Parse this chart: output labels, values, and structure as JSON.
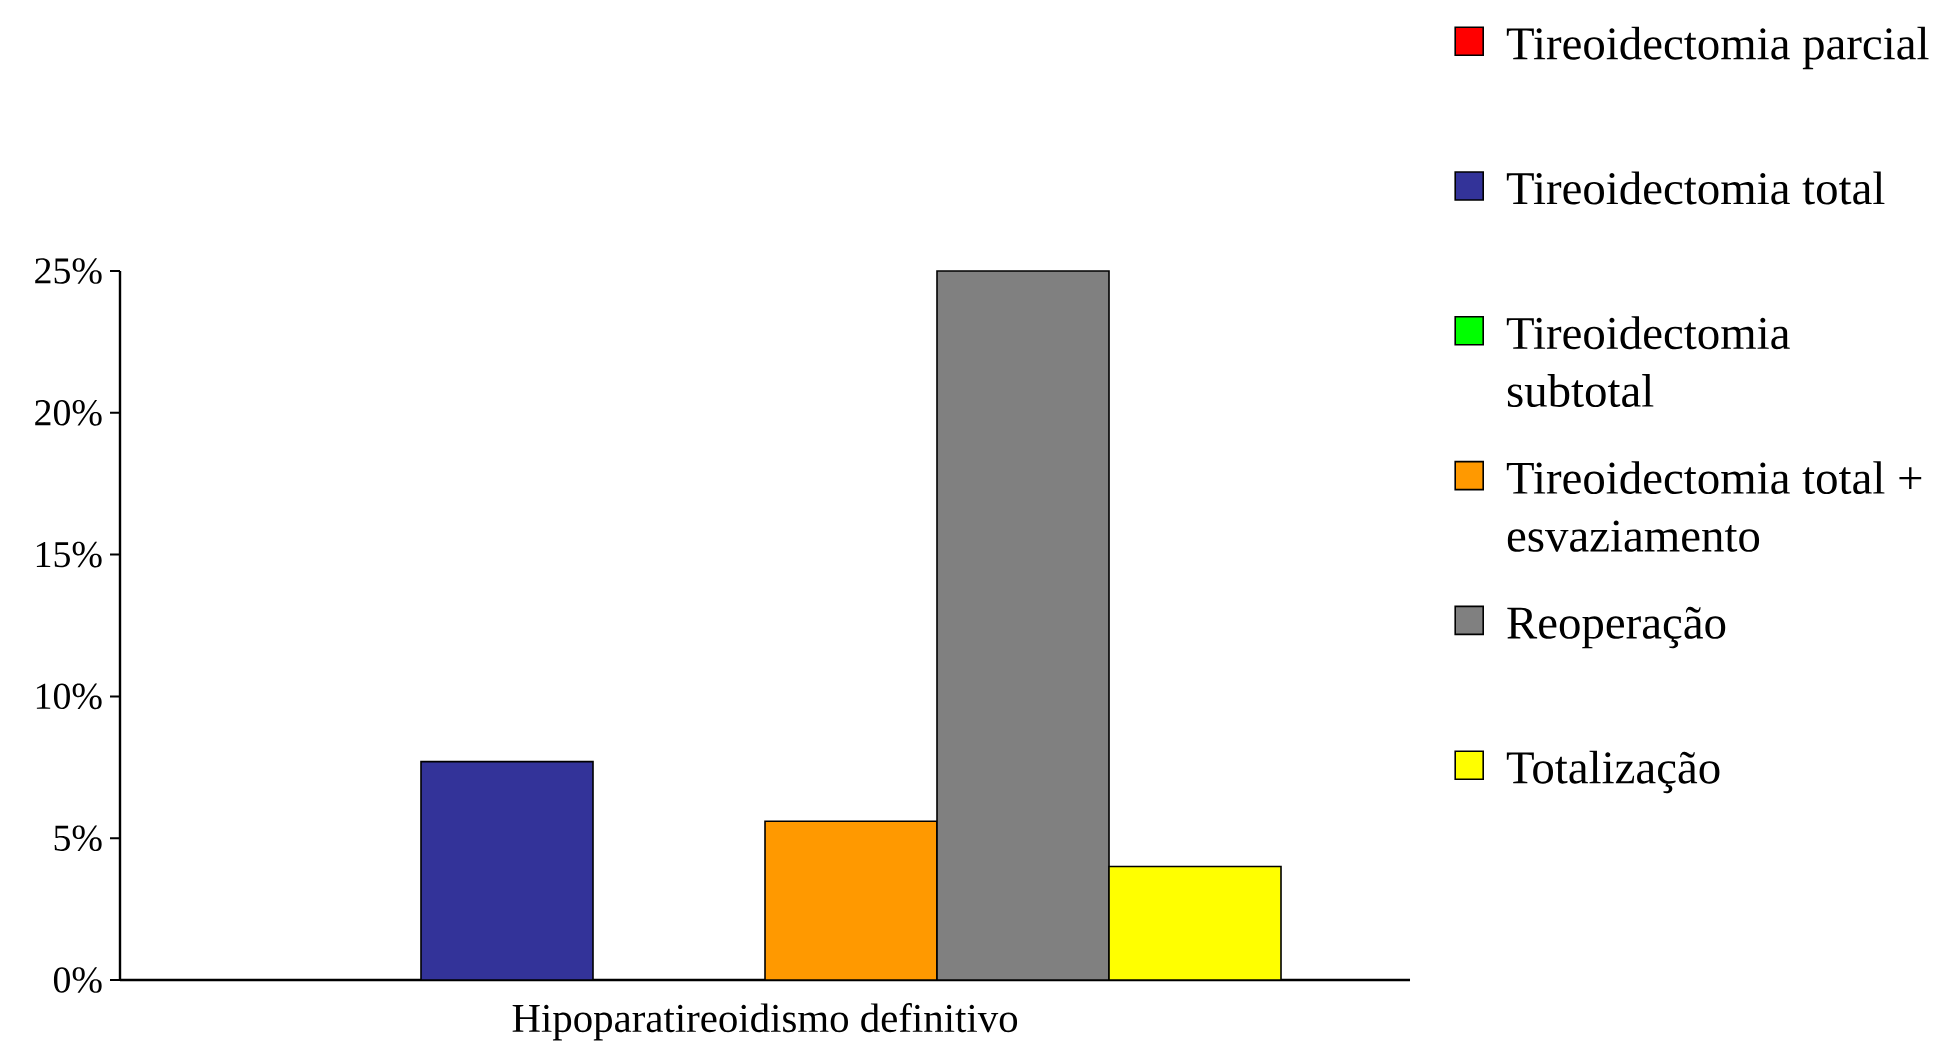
{
  "chart_data": {
    "type": "bar",
    "categories": [
      "Hipoparatireoidismo definitivo"
    ],
    "series": [
      {
        "name": "Tireoidectomia parcial",
        "color": "#ff0000",
        "values": [
          0
        ]
      },
      {
        "name": "Tireoidectomia total",
        "color": "#333399",
        "values": [
          7.7
        ]
      },
      {
        "name": "Tireoidectomia subtotal",
        "color": "#00ff00",
        "values": [
          0
        ]
      },
      {
        "name": "Tireoidectomia total + esvaziamento",
        "color": "#ff9900",
        "values": [
          5.6
        ]
      },
      {
        "name": "Reoperação",
        "color": "#808080",
        "values": [
          25
        ]
      },
      {
        "name": "Totalização",
        "color": "#ffff00",
        "values": [
          4.0
        ]
      }
    ],
    "ylim": [
      0,
      25
    ],
    "yticks": [
      {
        "value": 0,
        "label": "0%"
      },
      {
        "value": 5,
        "label": "5%"
      },
      {
        "value": 10,
        "label": "10%"
      },
      {
        "value": 15,
        "label": "15%"
      },
      {
        "value": 20,
        "label": "20%"
      },
      {
        "value": 25,
        "label": "25%"
      }
    ],
    "legend": "right"
  }
}
